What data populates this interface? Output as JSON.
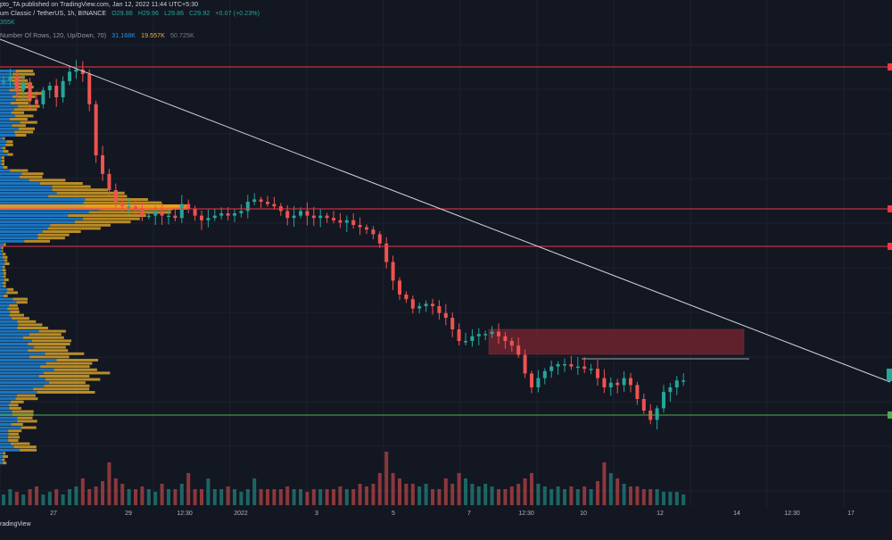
{
  "header": {
    "line1": "pto_TA published on TradingView.com, Jan 12, 2022 11:44 UTC+5:30",
    "line2_symbol": "um Classic / TetherUS, 1h, BINANCE",
    "line2_o": "O29.86",
    "line2_h": "H29.96",
    "line2_l": "L29.86",
    "line2_c": "C29.92",
    "line2_change": "+0.07 (+0.23%)",
    "line3_volume": "355K",
    "line4_study": "Number Of Rows, 120, Up/Down, 70)",
    "line4_a": "31.168K",
    "line4_b": "19.557K",
    "line4_c": "50.725K"
  },
  "brand": "radingView",
  "colors": {
    "background": "#131722",
    "up": "#26a69a",
    "down": "#ef5350",
    "resistance": "#f23645",
    "support": "#4caf50",
    "trendline": "#d1d4dc",
    "zone": "#7a2330",
    "vp_up": "#2196f3",
    "vp_down": "#f0b429"
  },
  "icons": [
    "red-price-marker-icon",
    "teal-price-marker-icon",
    "green-price-marker-icon"
  ],
  "chart_data": {
    "type": "candlestick",
    "instrument": "um Classic / TetherUS",
    "timeframe": "1h",
    "exchange": "BINANCE",
    "x_tick_labels": [
      "27",
      "29",
      "12:30",
      "2022",
      "3",
      "5",
      "7",
      "12:30",
      "10",
      "12",
      "14",
      "12:30",
      "17"
    ],
    "y_axis_labels_visible": false,
    "last_close": 29.92,
    "overlays": {
      "resistance_lines": 3,
      "support_lines": 1,
      "descending_trendline": true,
      "supply_zone": true,
      "short_horizontal_line": true,
      "volume_profile": true
    },
    "close_path": [
      0.08,
      0.06,
      0.12,
      0.09,
      0.16,
      0.18,
      0.12,
      0.1,
      0.15,
      0.08,
      0.04,
      0.03,
      0.05,
      0.18,
      0.4,
      0.48,
      0.55,
      0.6,
      0.62,
      0.62,
      0.63,
      0.66,
      0.66,
      0.64,
      0.66,
      0.66,
      0.67,
      0.61,
      0.63,
      0.66,
      0.68,
      0.67,
      0.66,
      0.65,
      0.66,
      0.65,
      0.64,
      0.6,
      0.59,
      0.6,
      0.61,
      0.62,
      0.64,
      0.67,
      0.66,
      0.64,
      0.66,
      0.67,
      0.66,
      0.67,
      0.68,
      0.69,
      0.68,
      0.7,
      0.71,
      0.72,
      0.74,
      0.78,
      0.86,
      0.94,
      1.0,
      1.02,
      1.06,
      1.05,
      1.04,
      1.05,
      1.08,
      1.1,
      1.15,
      1.2,
      1.2,
      1.18,
      1.17,
      1.17,
      1.16,
      1.18,
      1.2,
      1.22,
      1.26,
      1.34,
      1.4,
      1.36,
      1.33,
      1.31,
      1.3,
      1.3,
      1.31,
      1.31,
      1.32,
      1.32,
      1.36,
      1.4,
      1.38,
      1.39,
      1.36,
      1.39,
      1.45,
      1.5,
      1.54,
      1.49,
      1.42,
      1.4,
      1.37,
      1.37
    ],
    "volume_path": [
      0.2,
      0.3,
      0.25,
      0.2,
      0.3,
      0.35,
      0.2,
      0.25,
      0.3,
      0.2,
      0.3,
      0.35,
      0.5,
      0.3,
      0.35,
      0.45,
      0.8,
      0.5,
      0.4,
      0.3,
      0.3,
      0.35,
      0.3,
      0.25,
      0.4,
      0.3,
      0.3,
      0.4,
      0.6,
      0.3,
      0.3,
      0.5,
      0.3,
      0.3,
      0.35,
      0.3,
      0.25,
      0.3,
      0.5,
      0.3,
      0.3,
      0.3,
      0.3,
      0.35,
      0.3,
      0.3,
      0.25,
      0.3,
      0.3,
      0.3,
      0.3,
      0.35,
      0.3,
      0.3,
      0.4,
      0.35,
      0.4,
      0.6,
      1.0,
      0.6,
      0.5,
      0.4,
      0.4,
      0.35,
      0.4,
      0.3,
      0.3,
      0.5,
      0.4,
      0.6,
      0.5,
      0.4,
      0.35,
      0.4,
      0.35,
      0.3,
      0.3,
      0.35,
      0.4,
      0.5,
      0.6,
      0.4,
      0.35,
      0.3,
      0.35,
      0.3,
      0.35,
      0.3,
      0.35,
      0.3,
      0.45,
      0.8,
      0.6,
      0.5,
      0.4,
      0.35,
      0.35,
      0.3,
      0.3,
      0.3,
      0.25,
      0.25,
      0.25,
      0.2
    ]
  }
}
